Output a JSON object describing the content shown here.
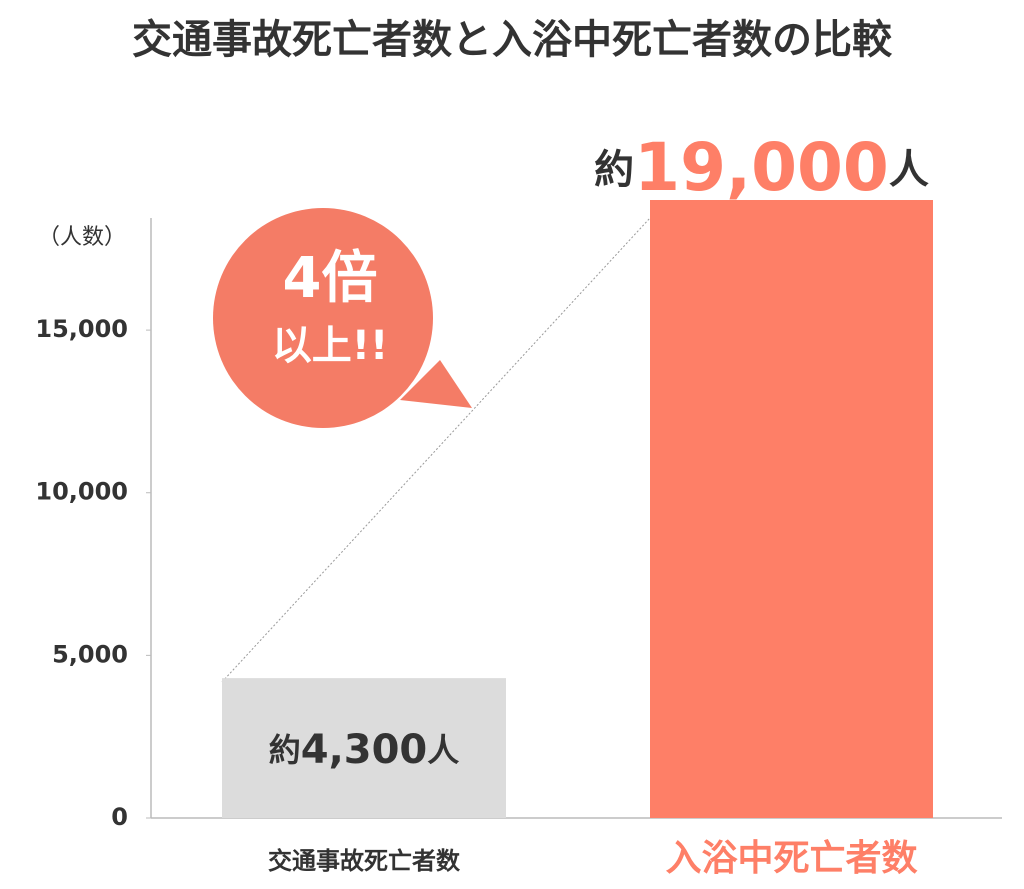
{
  "chart_data": {
    "type": "bar",
    "title": "交通事故死亡者数と入浴中死亡者数の比較",
    "y_label": "（人数）",
    "categories": [
      "交通事故死亡者数",
      "入浴中死亡者数"
    ],
    "values": [
      4300,
      19000
    ],
    "value_labels": [
      "約4,300人",
      "約19,000人"
    ],
    "colors": [
      "#dcdcdc",
      "#fe7f67"
    ],
    "ylim": [
      0,
      19000
    ],
    "yticks": [
      0,
      {
        "value": 5000,
        "label": "5,000"
      },
      {
        "value": 10000,
        "label": "10,000"
      },
      {
        "value": 15000,
        "label": "15,000"
      }
    ],
    "grid": false,
    "callout": [
      "4倍",
      "以上!!"
    ]
  }
}
